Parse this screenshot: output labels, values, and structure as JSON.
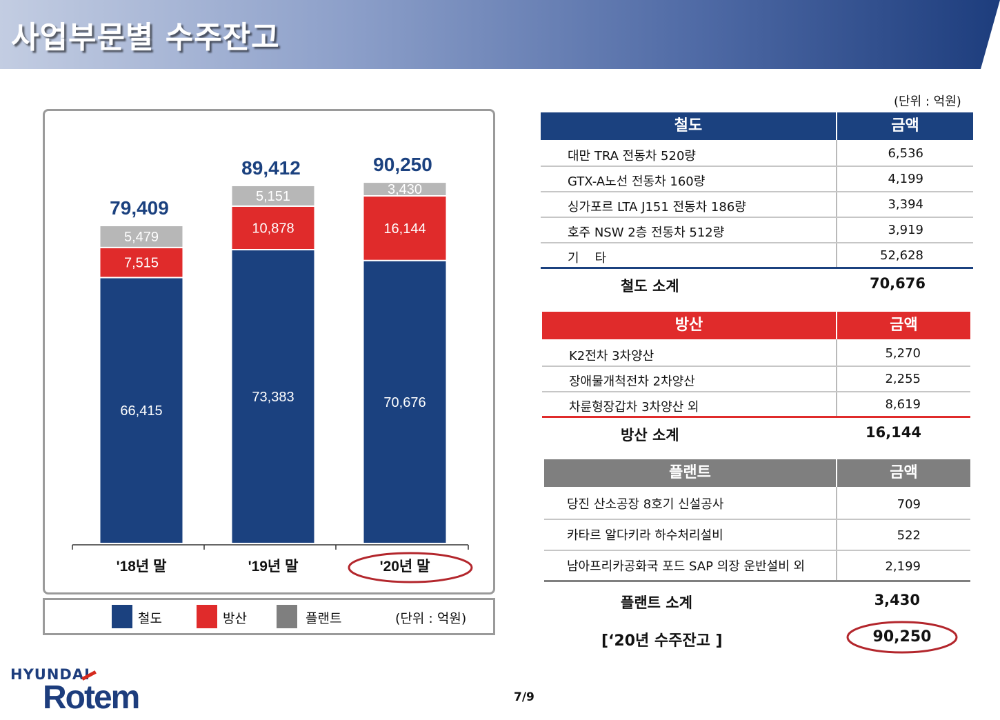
{
  "title": "사업부문별 수주잔고",
  "unit_note": "(단위 : 억원)",
  "page_number": "7/9",
  "logo": {
    "top": "HYUNDAI",
    "bottom": "Rotem"
  },
  "colors": {
    "rail": "#1b417f",
    "defense": "#e02b2b",
    "plant": "#b7b7b7",
    "legend_plant": "#7f7f7f",
    "highlight": "#b3262c"
  },
  "chart_data": {
    "type": "bar",
    "stacked": true,
    "categories": [
      "'18년 말",
      "'19년 말",
      "'20년 말"
    ],
    "series": [
      {
        "name": "철도",
        "values": [
          66415,
          73383,
          70676
        ]
      },
      {
        "name": "방산",
        "values": [
          7515,
          10878,
          16144
        ]
      },
      {
        "name": "플랜트",
        "values": [
          5479,
          5151,
          3430
        ]
      }
    ],
    "totals": [
      79409,
      89412,
      90250
    ],
    "highlight_category": "'20년 말",
    "legend_position": "bottom",
    "unit": "(단위 : 억원)",
    "grid": false
  },
  "legend": {
    "rail": "철도",
    "defense": "방산",
    "plant": "플랜트",
    "unit": "(단위 : 억원)"
  },
  "rail_table": {
    "header": "철도",
    "amount_header": "금액",
    "rows": [
      {
        "name": "대만 TRA 전동차 520량",
        "amount": "6,536"
      },
      {
        "name": "GTX-A노선 전동차 160량",
        "amount": "4,199"
      },
      {
        "name": "싱가포르 LTA J151 전동차 186량",
        "amount": "3,394"
      },
      {
        "name": "호주 NSW 2층 전동차 512량",
        "amount": "3,919"
      },
      {
        "name": "기    타",
        "amount": "52,628"
      }
    ],
    "subtotal_label": "철도 소계",
    "subtotal": "70,676"
  },
  "defense_table": {
    "header": "방산",
    "amount_header": "금액",
    "rows": [
      {
        "name": "K2전차 3차양산",
        "amount": "5,270"
      },
      {
        "name": "장애물개척전차 2차양산",
        "amount": "2,255"
      },
      {
        "name": "차륜형장갑차 3차양산 외",
        "amount": "8,619"
      }
    ],
    "subtotal_label": "방산 소계",
    "subtotal": "16,144"
  },
  "plant_table": {
    "header": "플랜트",
    "amount_header": "금액",
    "rows": [
      {
        "name": "당진 산소공장 8호기 신설공사",
        "amount": "709"
      },
      {
        "name": "카타르 알다키라 하수처리설비",
        "amount": "522"
      },
      {
        "name": "남아프리카공화국 포드 SAP 의장 운반설비 외",
        "amount": "2,199"
      }
    ],
    "subtotal_label": "플랜트 소계",
    "subtotal": "3,430"
  },
  "grand_total": {
    "label": "[‘20년 수주잔고 ]",
    "value": "90,250"
  }
}
